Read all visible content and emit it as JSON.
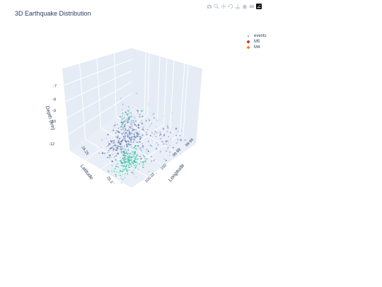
{
  "chart_data": {
    "type": "scatter3d",
    "title": "3D Earthquake Distribution",
    "axes": {
      "x": {
        "label": "Longitude",
        "ticks": [
          "99.96",
          "99.98",
          "100",
          "100.02"
        ],
        "range": [
          99.95,
          100.03
        ]
      },
      "y": {
        "label": "Latitude",
        "ticks": [
          "26.25",
          "26.3"
        ],
        "range": [
          26.2,
          26.33
        ]
      },
      "z": {
        "label": "Depth (km)",
        "ticks": [
          "-7",
          "-8",
          "-9",
          "-10",
          "-12"
        ],
        "range": [
          -12.5,
          -6
        ]
      }
    },
    "legend": {
      "placement": "top-right",
      "entries": [
        {
          "name": "events",
          "color": "#7f8fbf",
          "marker": "dot"
        },
        {
          "name": "M5",
          "color": "#d62728",
          "marker": "diamond"
        },
        {
          "name": "M4",
          "color": "#ff7f0e",
          "marker": "diamond"
        }
      ]
    },
    "series": [
      {
        "name": "events",
        "clusters": [
          {
            "lon": 99.985,
            "lat": 26.27,
            "depth": -8.3,
            "count": 260,
            "spread": [
              0.006,
              0.02,
              0.9
            ],
            "color": "#5a6fae"
          },
          {
            "lon": 99.993,
            "lat": 26.28,
            "depth": -10.2,
            "count": 220,
            "spread": [
              0.005,
              0.015,
              0.6
            ],
            "color": "#2ec4a0"
          },
          {
            "lon": 99.96,
            "lat": 26.23,
            "depth": -9.0,
            "count": 40,
            "spread": [
              0.002,
              0.005,
              0.4
            ],
            "color": "#3ba3a8"
          },
          {
            "lon": 100.015,
            "lat": 26.25,
            "depth": -8.0,
            "count": 90,
            "spread": [
              0.008,
              0.02,
              0.9
            ],
            "color": "#6c7bb8"
          },
          {
            "lon": 99.975,
            "lat": 26.25,
            "depth": -8.5,
            "count": 60,
            "spread": [
              0.008,
              0.02,
              1.1
            ],
            "color": "#7aa6c2"
          }
        ]
      },
      {
        "name": "M5",
        "points": []
      },
      {
        "name": "M4",
        "points": []
      }
    ],
    "background": "#e5ecf6",
    "grid": true
  },
  "modebar": {
    "icons": [
      "camera-icon",
      "zoom-icon",
      "pan-icon",
      "orbit-icon",
      "turntable-icon",
      "home-icon",
      "hover-icon",
      "plotly-logo-icon"
    ]
  }
}
